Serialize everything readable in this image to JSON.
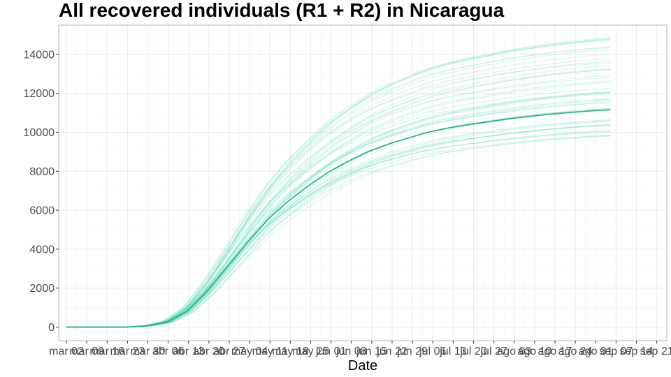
{
  "chart_data": {
    "type": "line",
    "title": "All recovered individuals (R1 + R2) in  Nicaragua",
    "xlabel": "Date",
    "ylabel": "",
    "ylim": [
      -700,
      15500
    ],
    "yticks": [
      0,
      2000,
      4000,
      6000,
      8000,
      10000,
      12000,
      14000
    ],
    "x_tick_labels": [
      "mar 02",
      "mar 09",
      "mar 16",
      "mar 23",
      "mar 30",
      "abr 06",
      "abr 13",
      "abr 20",
      "abr 27",
      "may 04",
      "may 11",
      "may 18",
      "may 25",
      "jun 01",
      "jun 08",
      "jun 15",
      "jun 22",
      "jun 29",
      "jul 06",
      "jul 13",
      "jul 20",
      "jul 27",
      "ago 03",
      "ago 10",
      "ago 17",
      "ago 24",
      "ago 31",
      "sep 07",
      "sep 14",
      "sep 21"
    ],
    "x_start_label": "mar 02",
    "x_end_label": "sep 07",
    "grid": true,
    "legend": "none",
    "colors": {
      "main": "#1fae8a",
      "ensemble": "#4fd6b0",
      "panel_border": "#b3b3b3",
      "grid": "#ebebeb"
    },
    "main_series": {
      "x": [
        "mar 02",
        "mar 09",
        "mar 16",
        "mar 23",
        "mar 30",
        "abr 06",
        "abr 13",
        "abr 20",
        "abr 27",
        "may 04",
        "may 11",
        "may 18",
        "may 25",
        "jun 01",
        "jun 08",
        "jun 15",
        "jun 22",
        "jun 29",
        "jul 06",
        "jul 13",
        "jul 20",
        "jul 27",
        "ago 03",
        "ago 10",
        "ago 17",
        "ago 24",
        "ago 31",
        "sep 07"
      ],
      "values": [
        0,
        0,
        0,
        0,
        60,
        250,
        820,
        1850,
        3100,
        4380,
        5520,
        6450,
        7240,
        7950,
        8520,
        9020,
        9400,
        9720,
        10020,
        10230,
        10400,
        10550,
        10700,
        10820,
        10930,
        11020,
        11100,
        11160
      ]
    },
    "ensemble": {
      "count": 48,
      "final_min": 9800,
      "final_max": 14900,
      "note_free": true
    }
  }
}
